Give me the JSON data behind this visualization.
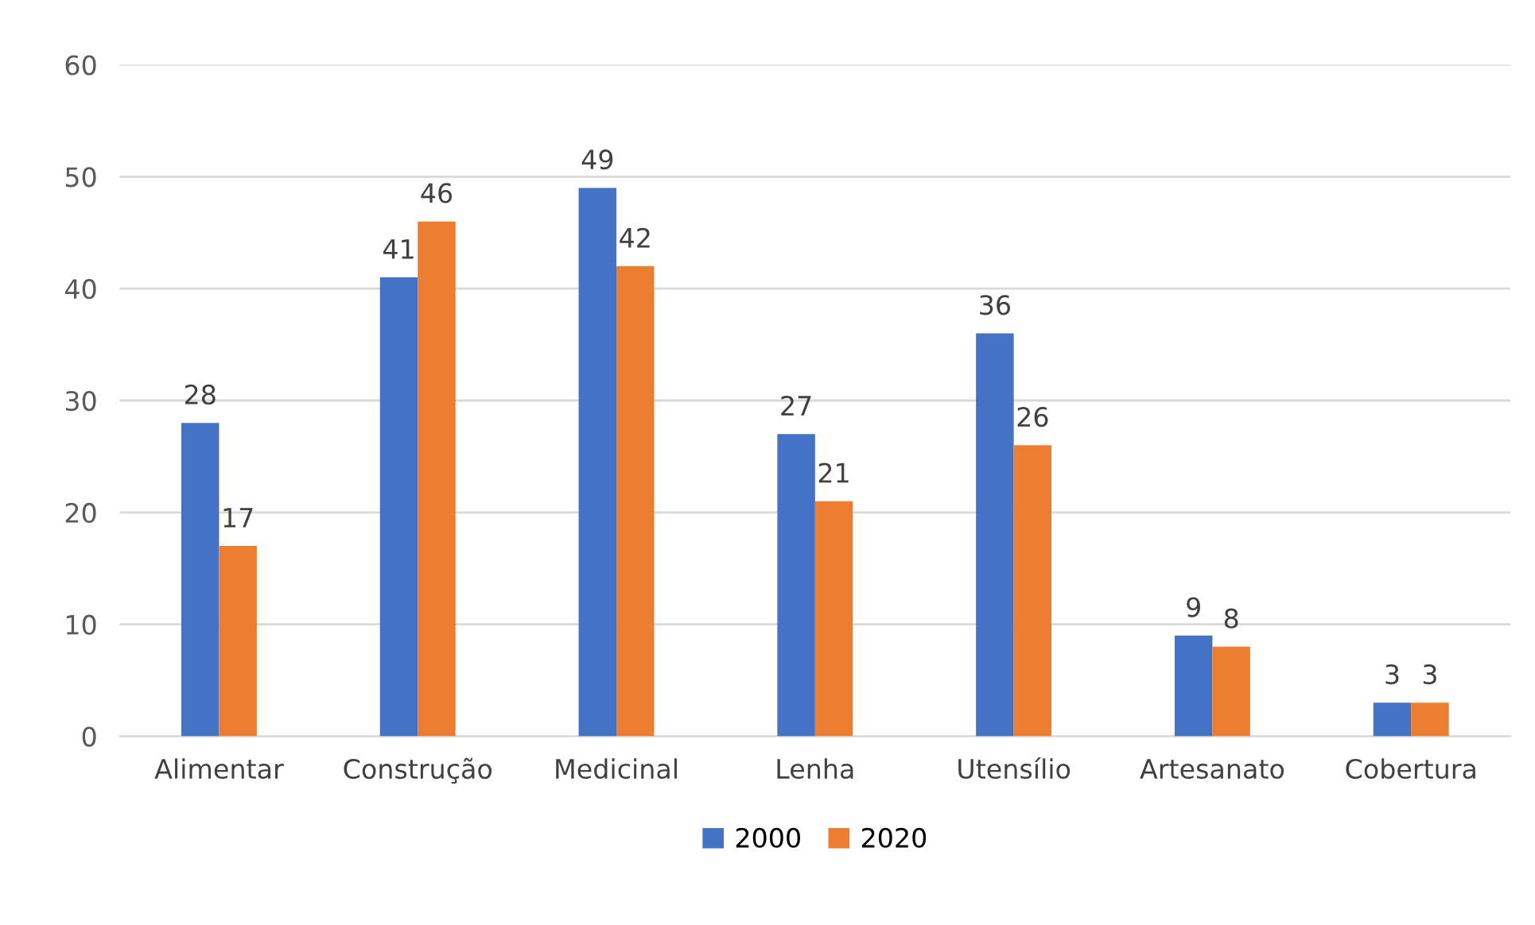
{
  "chart_data": {
    "type": "bar",
    "categories": [
      "Alimentar",
      "Construção",
      "Medicinal",
      "Lenha",
      "Utensílio",
      "Artesanato",
      "Cobertura"
    ],
    "series": [
      {
        "name": "2000",
        "color": "#4472c4",
        "values": [
          28,
          41,
          49,
          27,
          36,
          9,
          3
        ]
      },
      {
        "name": "2020",
        "color": "#ed7d31",
        "values": [
          17,
          46,
          42,
          21,
          26,
          8,
          3
        ]
      }
    ],
    "ylim": [
      0,
      60
    ],
    "yticks": [
      0,
      10,
      20,
      30,
      40,
      50,
      60
    ],
    "grid": "y",
    "legend": "bottom",
    "data_labels": true
  }
}
